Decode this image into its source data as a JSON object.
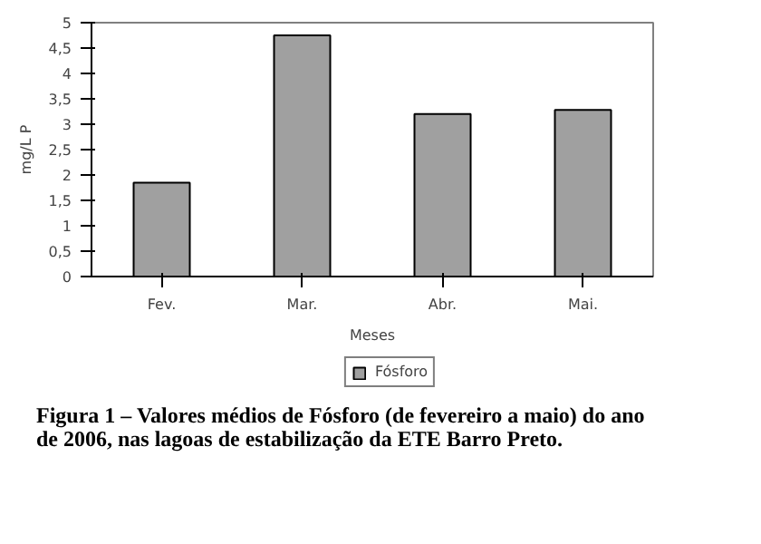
{
  "chart_data": {
    "type": "bar",
    "categories": [
      "Fev.",
      "Mar.",
      "Abr.",
      "Mai."
    ],
    "series": [
      {
        "name": "Fósforo",
        "color": "#a0a0a0",
        "values": [
          1.85,
          4.75,
          3.2,
          3.28
        ]
      }
    ],
    "xlabel": "Meses",
    "ylabel": "mg/L P",
    "ylim": [
      0,
      5
    ],
    "yticks": [
      0,
      {
        "value": 0.5,
        "label": "0,5"
      },
      1,
      {
        "value": 1.5,
        "label": "1,5"
      },
      2,
      {
        "value": 2.5,
        "label": "2,5"
      },
      3,
      {
        "value": 3.5,
        "label": "3,5"
      },
      4,
      {
        "value": 4.5,
        "label": "4,5"
      },
      5
    ],
    "grid": false,
    "legend": "bottom",
    "annotations": [
      "Figura 1 – Valores médios de Fósforo (de fevereiro a maio) do ano",
      "de 2006, nas lagoas de estabilização da ETE Barro Preto."
    ]
  }
}
